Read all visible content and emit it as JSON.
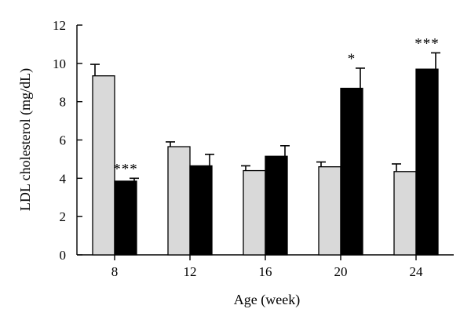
{
  "chart_data": {
    "type": "bar",
    "xlabel": "Age (week)",
    "ylabel": "LDL cholesterol (mg/dL)",
    "ylim": [
      0,
      12
    ],
    "yticks": [
      "0",
      "2",
      "4",
      "6",
      "8",
      "10",
      "12"
    ],
    "categories": [
      "8",
      "12",
      "16",
      "20",
      "24"
    ],
    "grid": false,
    "legend": "none",
    "series": [
      {
        "color": "#d9d9d9",
        "values": [
          9.35,
          5.65,
          4.4,
          4.6,
          4.35
        ],
        "errors": [
          0.6,
          0.25,
          0.25,
          0.25,
          0.4
        ],
        "significance": [
          "",
          "",
          "",
          "",
          ""
        ]
      },
      {
        "color": "#000000",
        "values": [
          3.85,
          4.65,
          5.15,
          8.7,
          9.7
        ],
        "errors": [
          0.15,
          0.6,
          0.55,
          1.05,
          0.85
        ],
        "significance": [
          "***",
          "",
          "",
          "*",
          "***"
        ]
      }
    ]
  }
}
